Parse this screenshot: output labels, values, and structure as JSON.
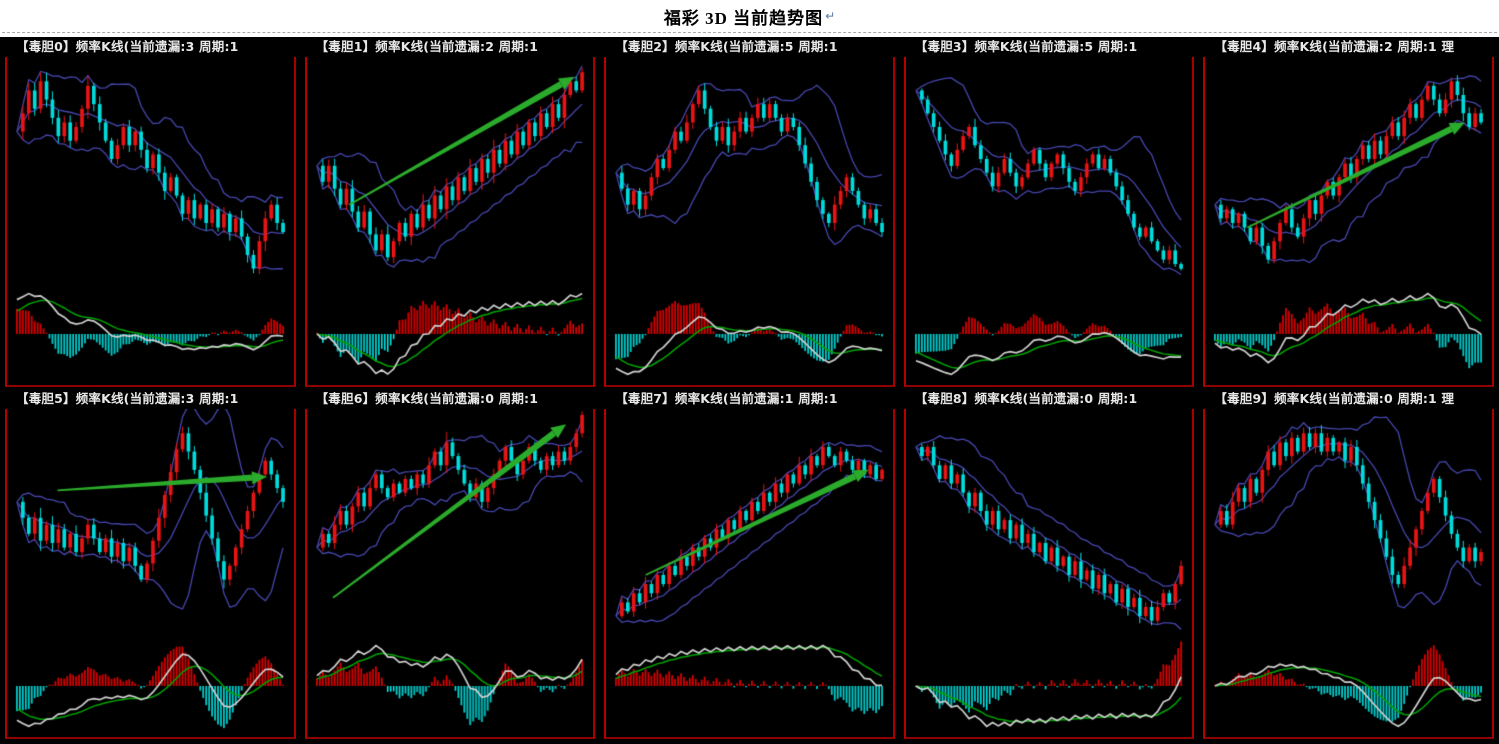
{
  "header": {
    "title": "福彩 3D 当前趋势图",
    "return_mark": "↵"
  },
  "grid": {
    "rows": 2,
    "columns": 5
  },
  "colors": {
    "page_background": "#ffffff",
    "chart_background": "#000000",
    "panel_border": "#a80000",
    "title_text": "#e8e8e8",
    "candle_up": "#e81414",
    "candle_down": "#00dcdc",
    "bollinger": "#4646ae",
    "macd_dif_line": "#cfcfcf",
    "macd_dea_line": "#00a400",
    "hist_up": "#d80000",
    "hist_down": "#00cccc",
    "arrow": "#2bab2b"
  },
  "chart_data": [
    {
      "type": "candlestick",
      "name": "毒胆0",
      "title": "【毒胆0】频率K线(当前遗漏:3 周期:1",
      "miss": 3,
      "period": 1,
      "overlays": [
        "bollinger-upper",
        "bollinger-middle",
        "bollinger-lower"
      ],
      "sub_indicator": "macd-dif-dea-histogram",
      "trend_arrow": null,
      "path": [
        0.7,
        0.78,
        0.88,
        0.8,
        0.92,
        0.84,
        0.76,
        0.68,
        0.74,
        0.66,
        0.72,
        0.8,
        0.9,
        0.82,
        0.74,
        0.66,
        0.58,
        0.64,
        0.72,
        0.64,
        0.7,
        0.62,
        0.54,
        0.6,
        0.52,
        0.44,
        0.5,
        0.42,
        0.34,
        0.4,
        0.32,
        0.38,
        0.3,
        0.36,
        0.28,
        0.34,
        0.26,
        0.32,
        0.24,
        0.16,
        0.1,
        0.22,
        0.32,
        0.38,
        0.3,
        0.26
      ]
    },
    {
      "type": "candlestick",
      "name": "毒胆1",
      "title": "【毒胆1】频率K线(当前遗漏:2 周期:1",
      "miss": 2,
      "period": 1,
      "overlays": [
        "bollinger-upper",
        "bollinger-middle",
        "bollinger-lower"
      ],
      "sub_indicator": "macd-dif-dea-histogram",
      "trend_arrow": {
        "x1": 0.13,
        "y1": 0.62,
        "x2": 0.96,
        "y2": 0.06
      },
      "path": [
        0.55,
        0.48,
        0.55,
        0.45,
        0.38,
        0.45,
        0.35,
        0.28,
        0.35,
        0.25,
        0.18,
        0.25,
        0.15,
        0.22,
        0.3,
        0.24,
        0.34,
        0.28,
        0.38,
        0.32,
        0.42,
        0.36,
        0.46,
        0.4,
        0.5,
        0.44,
        0.54,
        0.48,
        0.58,
        0.52,
        0.62,
        0.56,
        0.66,
        0.6,
        0.7,
        0.64,
        0.74,
        0.68,
        0.78,
        0.72,
        0.82,
        0.76,
        0.86,
        0.92,
        0.88,
        0.96
      ]
    },
    {
      "type": "candlestick",
      "name": "毒胆2",
      "title": "【毒胆2】频率K线(当前遗漏:5 周期:1",
      "miss": 5,
      "period": 1,
      "overlays": [
        "bollinger-upper",
        "bollinger-middle",
        "bollinger-lower"
      ],
      "sub_indicator": "macd-dif-dea-histogram",
      "trend_arrow": null,
      "path": [
        0.52,
        0.45,
        0.38,
        0.44,
        0.36,
        0.42,
        0.5,
        0.58,
        0.54,
        0.62,
        0.7,
        0.66,
        0.74,
        0.82,
        0.88,
        0.8,
        0.72,
        0.66,
        0.72,
        0.64,
        0.7,
        0.76,
        0.7,
        0.76,
        0.82,
        0.76,
        0.82,
        0.76,
        0.7,
        0.76,
        0.72,
        0.64,
        0.56,
        0.48,
        0.4,
        0.34,
        0.3,
        0.38,
        0.44,
        0.5,
        0.44,
        0.38,
        0.32,
        0.36,
        0.3,
        0.26
      ]
    },
    {
      "type": "candlestick",
      "name": "毒胆3",
      "title": "【毒胆3】频率K线(当前遗漏:5 周期:1",
      "miss": 5,
      "period": 1,
      "overlays": [
        "bollinger-upper",
        "bollinger-middle",
        "bollinger-lower"
      ],
      "sub_indicator": "macd-dif-dea-histogram",
      "trend_arrow": null,
      "path": [
        0.88,
        0.84,
        0.78,
        0.72,
        0.66,
        0.6,
        0.55,
        0.62,
        0.68,
        0.72,
        0.64,
        0.58,
        0.52,
        0.46,
        0.52,
        0.58,
        0.52,
        0.46,
        0.5,
        0.56,
        0.62,
        0.56,
        0.5,
        0.56,
        0.6,
        0.54,
        0.48,
        0.44,
        0.5,
        0.56,
        0.6,
        0.54,
        0.58,
        0.52,
        0.46,
        0.4,
        0.34,
        0.28,
        0.24,
        0.28,
        0.22,
        0.18,
        0.14,
        0.18,
        0.12,
        0.1
      ]
    },
    {
      "type": "candlestick",
      "name": "毒胆4",
      "title": "【毒胆4】频率K线(当前遗漏:2 周期:1 理",
      "miss": 2,
      "period": 1,
      "overlays": [
        "bollinger-upper",
        "bollinger-middle",
        "bollinger-lower"
      ],
      "sub_indicator": "macd-dif-dea-histogram",
      "trend_arrow": {
        "x1": 0.13,
        "y1": 0.72,
        "x2": 0.93,
        "y2": 0.26
      },
      "path": [
        0.38,
        0.32,
        0.36,
        0.3,
        0.34,
        0.28,
        0.22,
        0.28,
        0.2,
        0.14,
        0.22,
        0.3,
        0.36,
        0.28,
        0.24,
        0.32,
        0.4,
        0.34,
        0.42,
        0.48,
        0.42,
        0.5,
        0.56,
        0.5,
        0.58,
        0.64,
        0.58,
        0.66,
        0.6,
        0.68,
        0.74,
        0.68,
        0.76,
        0.82,
        0.76,
        0.84,
        0.9,
        0.84,
        0.78,
        0.84,
        0.92,
        0.86,
        0.78,
        0.72,
        0.78,
        0.74
      ]
    },
    {
      "type": "candlestick",
      "name": "毒胆5",
      "title": "【毒胆5】频率K线(当前遗漏:3 周期:1",
      "miss": 3,
      "period": 1,
      "overlays": [
        "bollinger-upper",
        "bollinger-middle",
        "bollinger-lower"
      ],
      "sub_indicator": "macd-dif-dea-histogram",
      "trend_arrow": {
        "x1": 0.16,
        "y1": 0.33,
        "x2": 0.93,
        "y2": 0.27
      },
      "path": [
        0.62,
        0.55,
        0.48,
        0.55,
        0.45,
        0.52,
        0.44,
        0.5,
        0.42,
        0.48,
        0.4,
        0.46,
        0.52,
        0.46,
        0.4,
        0.46,
        0.38,
        0.44,
        0.36,
        0.42,
        0.34,
        0.28,
        0.35,
        0.45,
        0.55,
        0.65,
        0.75,
        0.85,
        0.92,
        0.84,
        0.76,
        0.66,
        0.56,
        0.46,
        0.36,
        0.28,
        0.34,
        0.42,
        0.5,
        0.58,
        0.66,
        0.74,
        0.8,
        0.74,
        0.68,
        0.62
      ]
    },
    {
      "type": "candlestick",
      "name": "毒胆6",
      "title": "【毒胆6】频率K线(当前遗漏:0 周期:1",
      "miss": 0,
      "period": 1,
      "overlays": [
        "bollinger-upper",
        "bollinger-middle",
        "bollinger-lower"
      ],
      "sub_indicator": "macd-dif-dea-histogram",
      "trend_arrow": {
        "x1": 0.07,
        "y1": 0.8,
        "x2": 0.93,
        "y2": 0.04
      },
      "path": [
        0.42,
        0.48,
        0.44,
        0.52,
        0.58,
        0.52,
        0.6,
        0.66,
        0.6,
        0.68,
        0.74,
        0.68,
        0.64,
        0.7,
        0.66,
        0.72,
        0.68,
        0.74,
        0.7,
        0.78,
        0.84,
        0.78,
        0.88,
        0.82,
        0.76,
        0.7,
        0.64,
        0.7,
        0.62,
        0.68,
        0.74,
        0.8,
        0.86,
        0.8,
        0.74,
        0.8,
        0.86,
        0.8,
        0.76,
        0.82,
        0.78,
        0.84,
        0.8,
        0.86,
        0.92,
        1.0
      ]
    },
    {
      "type": "candlestick",
      "name": "毒胆7",
      "title": "【毒胆7】频率K线(当前遗漏:1 周期:1",
      "miss": 1,
      "period": 1,
      "overlays": [
        "bollinger-upper",
        "bollinger-middle",
        "bollinger-lower"
      ],
      "sub_indicator": "macd-dif-dea-histogram",
      "trend_arrow": {
        "x1": 0.12,
        "y1": 0.7,
        "x2": 0.94,
        "y2": 0.24
      },
      "path": [
        0.12,
        0.18,
        0.14,
        0.22,
        0.18,
        0.26,
        0.22,
        0.3,
        0.26,
        0.34,
        0.3,
        0.38,
        0.34,
        0.42,
        0.38,
        0.46,
        0.42,
        0.5,
        0.46,
        0.54,
        0.5,
        0.58,
        0.54,
        0.62,
        0.58,
        0.66,
        0.62,
        0.7,
        0.66,
        0.74,
        0.7,
        0.78,
        0.74,
        0.82,
        0.78,
        0.86,
        0.82,
        0.78,
        0.84,
        0.8,
        0.76,
        0.8,
        0.74,
        0.78,
        0.72,
        0.76
      ]
    },
    {
      "type": "candlestick",
      "name": "毒胆8",
      "title": "【毒胆8】频率K线(当前遗漏:0 周期:1",
      "miss": 0,
      "period": 1,
      "overlays": [
        "bollinger-upper",
        "bollinger-middle",
        "bollinger-lower"
      ],
      "sub_indicator": "macd-dif-dea-histogram",
      "trend_arrow": null,
      "path": [
        0.86,
        0.82,
        0.86,
        0.78,
        0.72,
        0.78,
        0.7,
        0.74,
        0.66,
        0.6,
        0.66,
        0.58,
        0.52,
        0.58,
        0.5,
        0.54,
        0.46,
        0.52,
        0.44,
        0.48,
        0.4,
        0.44,
        0.36,
        0.42,
        0.34,
        0.38,
        0.3,
        0.36,
        0.28,
        0.32,
        0.24,
        0.3,
        0.22,
        0.26,
        0.18,
        0.24,
        0.16,
        0.2,
        0.12,
        0.16,
        0.1,
        0.16,
        0.22,
        0.18,
        0.26,
        0.34
      ]
    },
    {
      "type": "candlestick",
      "name": "毒胆9",
      "title": "【毒胆9】频率K线(当前遗漏:0 周期:1 理",
      "miss": 0,
      "period": 1,
      "overlays": [
        "bollinger-upper",
        "bollinger-middle",
        "bollinger-lower"
      ],
      "sub_indicator": "macd-dif-dea-histogram",
      "trend_arrow": null,
      "path": [
        0.52,
        0.58,
        0.52,
        0.62,
        0.68,
        0.62,
        0.72,
        0.66,
        0.76,
        0.84,
        0.78,
        0.88,
        0.82,
        0.9,
        0.84,
        0.92,
        0.86,
        0.92,
        0.84,
        0.9,
        0.84,
        0.88,
        0.8,
        0.86,
        0.78,
        0.7,
        0.62,
        0.54,
        0.46,
        0.38,
        0.3,
        0.26,
        0.34,
        0.42,
        0.5,
        0.58,
        0.66,
        0.72,
        0.64,
        0.56,
        0.48,
        0.42,
        0.36,
        0.42,
        0.36,
        0.4
      ]
    }
  ]
}
